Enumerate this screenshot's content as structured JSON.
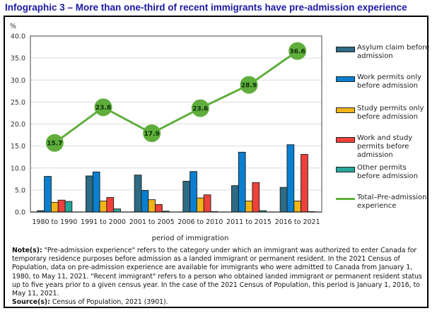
{
  "header": {
    "title": "Infographic 3 –  More than one-third of recent immigrants have pre-admission experience"
  },
  "chart_data": {
    "type": "bar",
    "title": "More than one-third of recent immigrants have pre-admission experience",
    "xlabel": "period of immigration",
    "ylabel": "%",
    "ylim": [
      0,
      40
    ],
    "yticks": [
      "0.0",
      "5.0",
      "10.0",
      "15.0",
      "20.0",
      "25.0",
      "30.0",
      "35.0",
      "40.0"
    ],
    "grid": true,
    "legend_position": "right",
    "categories": [
      "1980 to 1990",
      "1991 to 2000",
      "2001 to 2005",
      "2006 to 2010",
      "2011 to 2015",
      "2016 to 2021"
    ],
    "series": [
      {
        "name": "Asylum claim before admission",
        "type": "bar",
        "color": "#2e6b84",
        "values": [
          0.3,
          8.2,
          8.4,
          7.0,
          6.0,
          5.6
        ]
      },
      {
        "name": "Work permits only before admission",
        "type": "bar",
        "color": "#0a7fd0",
        "values": [
          8.1,
          9.1,
          4.9,
          9.2,
          13.6,
          15.3
        ]
      },
      {
        "name": "Study permits only before admission",
        "type": "bar",
        "color": "#f2b416",
        "values": [
          2.2,
          2.5,
          2.8,
          3.2,
          2.5,
          2.5
        ]
      },
      {
        "name": "Work and study permits before admission",
        "type": "bar",
        "color": "#f0403c",
        "values": [
          2.7,
          3.3,
          1.7,
          3.9,
          6.7,
          13.1
        ]
      },
      {
        "name": "Other permits before admission",
        "type": "bar",
        "color": "#26a69a",
        "values": [
          2.4,
          0.7,
          0.2,
          0.1,
          0.3,
          0.1
        ]
      },
      {
        "name": "Total–Pre-admission experience",
        "type": "line",
        "color": "#5fae3c",
        "values": [
          15.7,
          23.8,
          17.9,
          23.6,
          28.9,
          36.6
        ],
        "labels": [
          "15.7",
          "23.8",
          "17.9",
          "23.6",
          "28.9",
          "36.6"
        ]
      }
    ]
  },
  "legend": {
    "items": [
      {
        "label": "Asylum claim before admission",
        "color": "#2e6b84",
        "kind": "bar"
      },
      {
        "label": "Work permits only before admission",
        "color": "#0a7fd0",
        "kind": "bar"
      },
      {
        "label": "Study permits only before admission",
        "color": "#f2b416",
        "kind": "bar"
      },
      {
        "label": "Work and study permits before admission",
        "color": "#f0403c",
        "kind": "bar"
      },
      {
        "label": "Other permits before admission",
        "color": "#26a69a",
        "kind": "bar"
      },
      {
        "label": "Total–Pre-admission experience",
        "color": "#5fae3c",
        "kind": "line"
      }
    ]
  },
  "notes": {
    "note_label": "Note(s):",
    "note_text": " \"Pre-admission experience\" refers to the category under which an immigrant was authorized to enter Canada for temporary residence purposes before admission as a landed immigrant or permanent resident. In the 2021 Census of Population, data on pre-admission experience are available for immigrants who were admitted to Canada from January 1, 1980, to May 11, 2021. \"Recent immigrant\" refers to a person who obtained landed immigrant or permanent resident status up to five years prior to a given census year. In the case of the 2021 Census of Population, this period is January 1, 2016, to May 11, 2021.",
    "source_label": "Source(s):",
    "source_text": " Census of Population, 2021 (3901)."
  }
}
